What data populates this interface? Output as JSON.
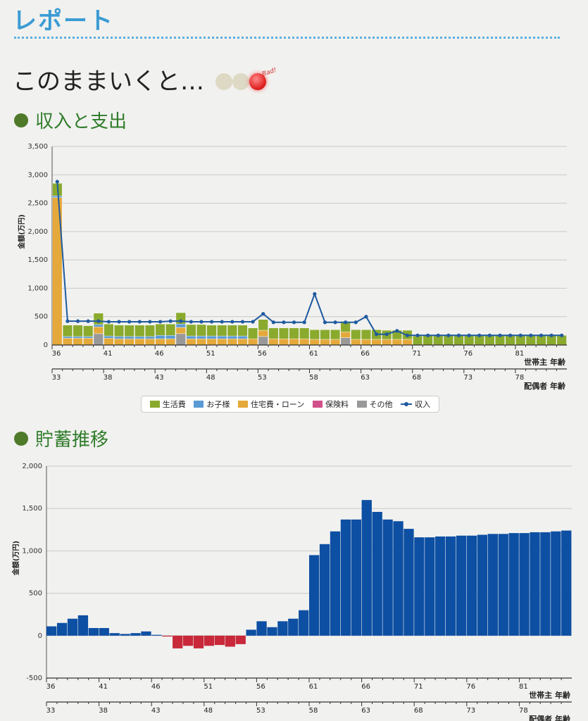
{
  "page": {
    "title": "レポート",
    "headline": "このままいくと…",
    "status_badge": "Bad!",
    "section1_title": "収入と支出",
    "section2_title": "貯蓄推移"
  },
  "colors": {
    "living": "#8aaa2e",
    "kids": "#5b9bd5",
    "housing": "#e4a93a",
    "insurance": "#d1508a",
    "other": "#999999",
    "income": "#1f5aa0",
    "savings_pos": "#0d4fa3",
    "savings_neg": "#c8283a"
  },
  "chart_data": [
    {
      "type": "bar",
      "stacked": true,
      "ylabel": "金額(万円)",
      "ylim": [
        0,
        3500
      ],
      "yticks": [
        0,
        500,
        1000,
        1500,
        2000,
        2500,
        3000,
        3500
      ],
      "y_tick_labels": [
        "0",
        "500",
        "1,000",
        "1,500",
        "2,000",
        "2,500",
        "3,000",
        "3,500"
      ],
      "grid": true,
      "x": [
        36,
        37,
        38,
        39,
        40,
        41,
        42,
        43,
        44,
        45,
        46,
        47,
        48,
        49,
        50,
        51,
        52,
        53,
        54,
        55,
        56,
        57,
        58,
        59,
        60,
        61,
        62,
        63,
        64,
        65,
        66,
        67,
        68,
        69,
        70,
        71,
        72,
        73,
        74,
        75,
        76,
        77,
        78,
        79,
        80,
        81,
        82,
        83,
        84,
        85
      ],
      "x_axis_label": "世帯主 年齢",
      "x_ticks": [
        36,
        41,
        46,
        51,
        56,
        61,
        66,
        71,
        76,
        81
      ],
      "secondary_axis_label": "配偶者 年齢",
      "secondary_ticks": [
        33,
        38,
        43,
        48,
        53,
        58,
        63,
        68,
        73,
        78
      ],
      "legend": [
        "生活費",
        "お子様",
        "住宅費・ローン",
        "保険料",
        "その他",
        "収入"
      ],
      "legend_position": "bottom",
      "series": [
        {
          "name": "生活費",
          "values": [
            220,
            200,
            200,
            190,
            200,
            210,
            200,
            200,
            200,
            200,
            200,
            200,
            200,
            200,
            200,
            190,
            190,
            190,
            190,
            190,
            190,
            190,
            190,
            190,
            190,
            170,
            170,
            170,
            170,
            170,
            170,
            170,
            160,
            160,
            160,
            160,
            170,
            170,
            170,
            170,
            170,
            170,
            170,
            170,
            170,
            170,
            170,
            170,
            170,
            170
          ]
        },
        {
          "name": "お子様",
          "values": [
            30,
            30,
            30,
            30,
            40,
            40,
            40,
            40,
            40,
            40,
            60,
            60,
            60,
            50,
            50,
            50,
            50,
            50,
            50,
            0,
            0,
            0,
            0,
            0,
            0,
            0,
            0,
            0,
            0,
            0,
            0,
            0,
            0,
            0,
            0,
            0,
            0,
            0,
            0,
            0,
            0,
            0,
            0,
            0,
            0,
            0,
            0,
            0,
            0,
            0
          ]
        },
        {
          "name": "住宅費・ローン",
          "values": [
            2600,
            120,
            120,
            120,
            120,
            120,
            110,
            110,
            110,
            110,
            110,
            110,
            110,
            110,
            110,
            110,
            110,
            110,
            110,
            110,
            110,
            110,
            110,
            110,
            110,
            100,
            100,
            100,
            100,
            100,
            100,
            100,
            100,
            100,
            100,
            0,
            0,
            0,
            0,
            0,
            0,
            0,
            0,
            0,
            0,
            0,
            0,
            0,
            0,
            0
          ]
        },
        {
          "name": "保険料",
          "values": [
            0,
            0,
            0,
            0,
            0,
            0,
            0,
            0,
            0,
            0,
            0,
            0,
            0,
            0,
            0,
            0,
            0,
            0,
            0,
            0,
            0,
            0,
            0,
            0,
            0,
            0,
            0,
            0,
            0,
            0,
            0,
            0,
            0,
            0,
            0,
            0,
            0,
            0,
            0,
            0,
            0,
            0,
            0,
            0,
            0,
            0,
            0,
            0,
            0,
            0
          ]
        },
        {
          "name": "その他",
          "values": [
            0,
            0,
            0,
            0,
            200,
            0,
            0,
            0,
            0,
            0,
            0,
            0,
            200,
            0,
            0,
            0,
            0,
            0,
            0,
            0,
            150,
            0,
            0,
            0,
            0,
            0,
            0,
            0,
            130,
            0,
            0,
            0,
            0,
            0,
            0,
            0,
            0,
            0,
            0,
            0,
            0,
            0,
            0,
            0,
            0,
            0,
            0,
            0,
            0,
            0
          ]
        },
        {
          "name": "収入",
          "type": "line",
          "values": [
            2880,
            420,
            420,
            420,
            420,
            410,
            410,
            410,
            410,
            410,
            410,
            420,
            420,
            410,
            410,
            410,
            410,
            410,
            410,
            410,
            550,
            400,
            400,
            400,
            400,
            900,
            400,
            400,
            400,
            400,
            500,
            190,
            190,
            250,
            170,
            170,
            170,
            170,
            170,
            170,
            170,
            170,
            170,
            170,
            170,
            170,
            170,
            170,
            170,
            170
          ]
        }
      ]
    },
    {
      "type": "bar",
      "ylabel": "金額(万円)",
      "ylim": [
        -500,
        2000
      ],
      "yticks": [
        -500,
        0,
        500,
        1000,
        1500,
        2000
      ],
      "y_tick_labels": [
        "-500",
        "0",
        "500",
        "1,000",
        "1,500",
        "2,000"
      ],
      "grid": true,
      "x": [
        36,
        37,
        38,
        39,
        40,
        41,
        42,
        43,
        44,
        45,
        46,
        47,
        48,
        49,
        50,
        51,
        52,
        53,
        54,
        55,
        56,
        57,
        58,
        59,
        60,
        61,
        62,
        63,
        64,
        65,
        66,
        67,
        68,
        69,
        70,
        71,
        72,
        73,
        74,
        75,
        76,
        77,
        78,
        79,
        80,
        81,
        82,
        83,
        84,
        85
      ],
      "x_axis_label": "世帯主 年齢",
      "x_ticks": [
        36,
        41,
        46,
        51,
        56,
        61,
        66,
        71,
        76,
        81
      ],
      "secondary_axis_label": "配偶者 年齢",
      "secondary_ticks": [
        33,
        38,
        43,
        48,
        53,
        58,
        63,
        68,
        73,
        78
      ],
      "series": [
        {
          "name": "貯蓄",
          "values": [
            110,
            150,
            200,
            240,
            90,
            90,
            30,
            20,
            30,
            50,
            10,
            -10,
            -150,
            -120,
            -150,
            -120,
            -110,
            -130,
            -100,
            70,
            170,
            100,
            170,
            200,
            300,
            950,
            1080,
            1230,
            1370,
            1370,
            1600,
            1460,
            1370,
            1350,
            1260,
            1160,
            1160,
            1170,
            1170,
            1180,
            1180,
            1190,
            1200,
            1200,
            1210,
            1210,
            1220,
            1220,
            1230,
            1240
          ]
        }
      ]
    }
  ]
}
